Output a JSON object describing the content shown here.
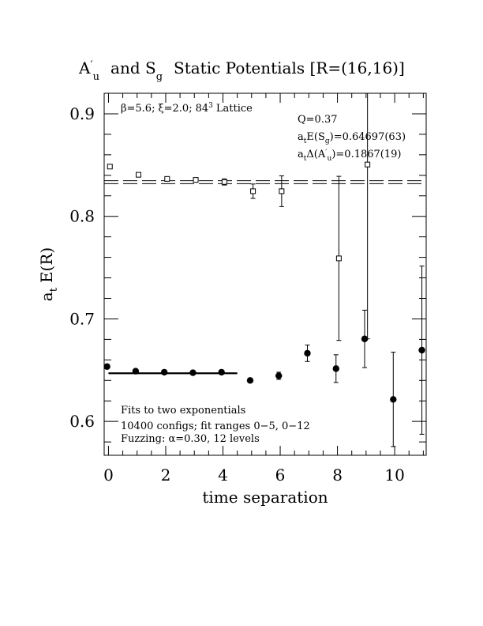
{
  "chart_data": {
    "type": "scatter",
    "title_parts": {
      "a": "A",
      "a_prime": "′",
      "a_sub": "u",
      "mid": "and S",
      "s_sub": "g",
      "rest": "Static Potentials [R=(16,16)]"
    },
    "xlabel": "time separation",
    "ylabel_parts": {
      "a": "a",
      "a_sub": "t",
      "rest": "E(R)"
    },
    "xlim": [
      -0.15,
      11.1
    ],
    "ylim": [
      0.567,
      0.92
    ],
    "xticks": [
      0,
      2,
      4,
      6,
      8,
      10
    ],
    "xtick_labels": [
      "0",
      "2",
      "4",
      "6",
      "8",
      "10"
    ],
    "yticks": [
      0.6,
      0.7,
      0.8,
      0.9
    ],
    "ytick_labels": [
      "0.6",
      "0.7",
      "0.8",
      "0.9"
    ],
    "grid": false,
    "series": [
      {
        "marker": "open-square",
        "x": [
          0.05,
          1.05,
          2.05,
          3.05,
          4.05,
          5.05,
          6.05,
          8.05,
          9.05
        ],
        "y": [
          0.8485,
          0.8405,
          0.8365,
          0.8355,
          0.8335,
          0.8245,
          0.8245,
          0.759,
          0.8505
        ],
        "yerr": [
          0.0005,
          0.001,
          0.0015,
          0.0015,
          0.003,
          0.007,
          0.015,
          0.08,
          0.17
        ]
      },
      {
        "marker": "filled-circle",
        "x": [
          -0.05,
          0.95,
          1.95,
          2.95,
          3.95,
          4.95,
          5.95,
          6.95,
          7.95,
          8.95,
          9.95,
          10.95
        ],
        "y": [
          0.6535,
          0.649,
          0.648,
          0.6475,
          0.648,
          0.64,
          0.6445,
          0.6665,
          0.6515,
          0.6805,
          0.6215,
          0.6695
        ],
        "yerr": [
          0.0008,
          0.001,
          0.001,
          0.001,
          0.0015,
          0.0015,
          0.0035,
          0.008,
          0.0135,
          0.028,
          0.046,
          0.082
        ]
      }
    ],
    "fit_lines": [
      {
        "style": "solid",
        "x": [
          0,
          4.5
        ],
        "y": [
          0.64697,
          0.64697
        ]
      },
      {
        "style": "dashed",
        "x": [
          -0.15,
          11.1
        ],
        "y": [
          0.8347,
          0.8347
        ]
      },
      {
        "style": "dashed",
        "x": [
          -0.15,
          11.1
        ],
        "y": [
          0.8318,
          0.8318
        ]
      }
    ],
    "annotations": {
      "lattice": {
        "beta": "β",
        "beta_val": "=5.6;",
        "xi": "ξ",
        "xi_val": "=2.0;",
        "size": "84",
        "size_sup": "3",
        "tail": "Lattice"
      },
      "q": "Q=0.37",
      "es": {
        "a": "a",
        "sub": "t",
        "mid": "E(S",
        "s_sub": "g",
        "val": ")=0.64697(63)"
      },
      "da": {
        "a": "a",
        "sub": "t",
        "mid": "Δ(A",
        "prime": "′",
        "a_sub": "u",
        "val": ")=0.1867(19)"
      },
      "fits": "Fits to two exponentials",
      "configs": "10400 configs; fit ranges 0−5, 0−12",
      "fuzz": {
        "pre": "Fuzzing: ",
        "alpha": "α",
        "post": "=0.30, 12 levels"
      }
    }
  }
}
